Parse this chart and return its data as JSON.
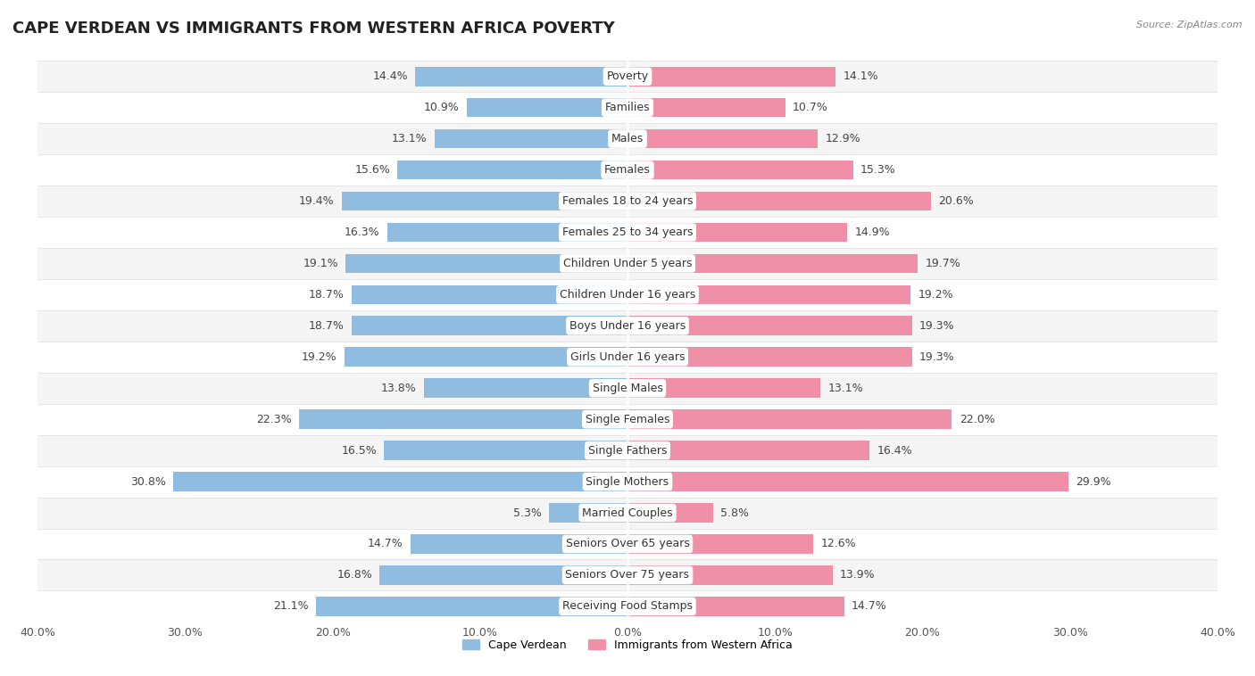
{
  "title": "CAPE VERDEAN VS IMMIGRANTS FROM WESTERN AFRICA POVERTY",
  "source": "Source: ZipAtlas.com",
  "categories": [
    "Poverty",
    "Families",
    "Males",
    "Females",
    "Females 18 to 24 years",
    "Females 25 to 34 years",
    "Children Under 5 years",
    "Children Under 16 years",
    "Boys Under 16 years",
    "Girls Under 16 years",
    "Single Males",
    "Single Females",
    "Single Fathers",
    "Single Mothers",
    "Married Couples",
    "Seniors Over 65 years",
    "Seniors Over 75 years",
    "Receiving Food Stamps"
  ],
  "cape_verdean": [
    14.4,
    10.9,
    13.1,
    15.6,
    19.4,
    16.3,
    19.1,
    18.7,
    18.7,
    19.2,
    13.8,
    22.3,
    16.5,
    30.8,
    5.3,
    14.7,
    16.8,
    21.1
  ],
  "western_africa": [
    14.1,
    10.7,
    12.9,
    15.3,
    20.6,
    14.9,
    19.7,
    19.2,
    19.3,
    19.3,
    13.1,
    22.0,
    16.4,
    29.9,
    5.8,
    12.6,
    13.9,
    14.7
  ],
  "color_blue": "#90BCE0",
  "color_pink": "#F090A8",
  "color_row_light": "#F5F5F5",
  "color_row_white": "#FFFFFF",
  "xlim": 40.0,
  "legend_blue": "Cape Verdean",
  "legend_pink": "Immigrants from Western Africa",
  "bar_height": 0.62,
  "title_fontsize": 13,
  "label_fontsize": 9,
  "value_fontsize": 9,
  "tick_fontsize": 9
}
